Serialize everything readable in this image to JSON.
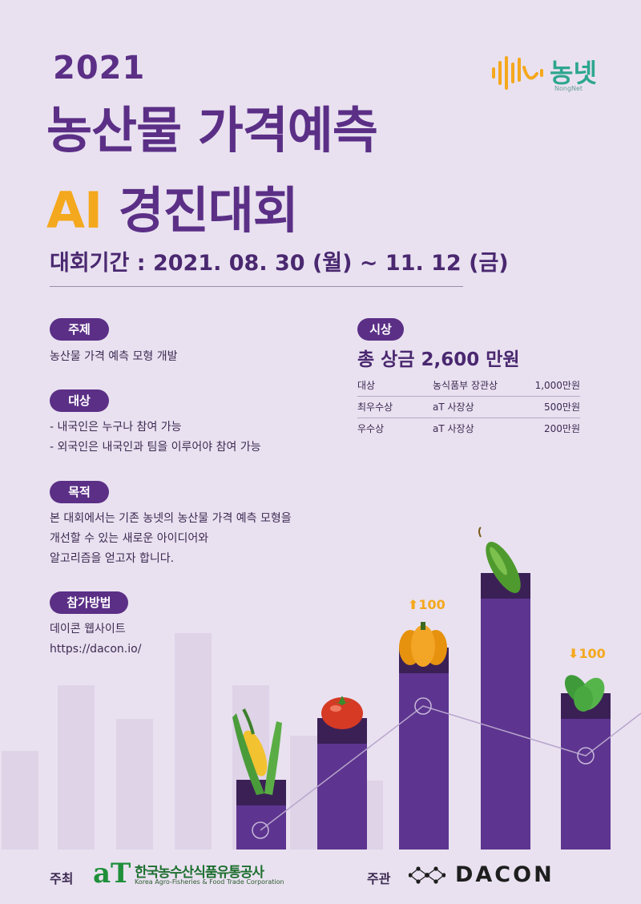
{
  "header": {
    "year": "2021",
    "title_line1": "농산물 가격예측",
    "title_ai": "AI",
    "title_line2_rest": " 경진대회",
    "period": "대회기간 : 2021. 08. 30 (월) ~ 11. 12 (금)"
  },
  "logo": {
    "name": "농넷",
    "sub": "NongNet",
    "icon": "soundwave-icon"
  },
  "sections": {
    "theme": {
      "label": "주제",
      "lines": [
        "농산물 가격 예측 모형 개발"
      ]
    },
    "target": {
      "label": "대상",
      "lines": [
        "- 내국인은 누구나 참여 가능",
        "- 외국인은 내국인과 팀을 이루어야 참여 가능"
      ]
    },
    "purpose": {
      "label": "목적",
      "lines": [
        "본 대회에서는 기존 농넷의 농산물 가격 예측 모형을",
        "개선할 수 있는 새로운 아이디어와",
        "알고리즘을 얻고자 합니다."
      ]
    },
    "method": {
      "label": "참가방법",
      "lines": [
        "데이콘 웹사이트",
        "https://dacon.io/"
      ]
    }
  },
  "prizes": {
    "label": "시상",
    "total": "총 상금 2,600 만원",
    "rows": [
      {
        "rank": "대상",
        "award": "농식품부 장관상",
        "amount": "1,000만원"
      },
      {
        "rank": "최우수상",
        "award": "aT 사장상",
        "amount": "500만원"
      },
      {
        "rank": "우수상",
        "award": "aT 사장상",
        "amount": "200만원"
      }
    ]
  },
  "annotations": {
    "up": "100",
    "down": "100"
  },
  "footer": {
    "host_label": "주최",
    "host_mark": "aT",
    "host_name": "한국농수산식품유통공사",
    "host_name_en": "Korea Agro-Fisheries & Food Trade Corporation",
    "organizer_label": "주관",
    "organizer_name": "DACON"
  },
  "colors": {
    "primary": "#5b2f86",
    "accent": "#f4a81d",
    "background": "#e9e1f0",
    "brand_green": "#2ea68f"
  }
}
